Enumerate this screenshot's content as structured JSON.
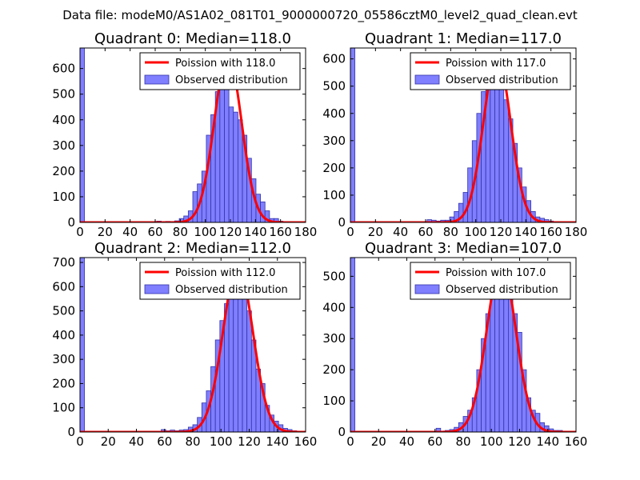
{
  "figure_title": "Data file: modeM0/AS1A02_081T01_9000000720_05586cztM0_level2_quad_clean.evt",
  "colors": {
    "bar_fill": "#7f7fff",
    "bar_edge": "#3333aa",
    "curve": "#ff0000"
  },
  "chart_data": [
    {
      "type": "bar",
      "title": "Quadrant 0: Median=118.0",
      "legend": [
        "Poission with 118.0",
        "Observed distribution"
      ],
      "xlim": [
        0,
        180
      ],
      "ylim": [
        0,
        680
      ],
      "xticks": [
        0,
        20,
        40,
        60,
        80,
        100,
        120,
        140,
        160,
        180
      ],
      "yticks": [
        0,
        100,
        200,
        300,
        400,
        500,
        600
      ],
      "bin_width": 3.6,
      "bins": [
        {
          "x": 0,
          "count": 680
        },
        {
          "x": 61.2,
          "count": 5
        },
        {
          "x": 64.8,
          "count": 3
        },
        {
          "x": 68.4,
          "count": 4
        },
        {
          "x": 72,
          "count": 3
        },
        {
          "x": 75.6,
          "count": 6
        },
        {
          "x": 79.2,
          "count": 15
        },
        {
          "x": 82.8,
          "count": 25
        },
        {
          "x": 86.4,
          "count": 45
        },
        {
          "x": 90,
          "count": 120
        },
        {
          "x": 93.6,
          "count": 150
        },
        {
          "x": 97.2,
          "count": 200
        },
        {
          "x": 100.8,
          "count": 340
        },
        {
          "x": 104.4,
          "count": 420
        },
        {
          "x": 108,
          "count": 510
        },
        {
          "x": 111.6,
          "count": 585
        },
        {
          "x": 115.2,
          "count": 650
        },
        {
          "x": 118.8,
          "count": 450
        },
        {
          "x": 122.4,
          "count": 430
        },
        {
          "x": 126,
          "count": 400
        },
        {
          "x": 129.6,
          "count": 340
        },
        {
          "x": 133.2,
          "count": 250
        },
        {
          "x": 136.8,
          "count": 170
        },
        {
          "x": 140.4,
          "count": 110
        },
        {
          "x": 144,
          "count": 80
        },
        {
          "x": 147.6,
          "count": 45
        },
        {
          "x": 151.2,
          "count": 15
        },
        {
          "x": 154.8,
          "count": 15
        },
        {
          "x": 158.4,
          "count": 5
        }
      ],
      "poisson_mean": 118.0,
      "curve_peak": 650
    },
    {
      "type": "bar",
      "title": "Quadrant 1: Median=117.0",
      "legend": [
        "Poission with 117.0",
        "Observed distribution"
      ],
      "xlim": [
        0,
        180
      ],
      "ylim": [
        0,
        640
      ],
      "xticks": [
        0,
        20,
        40,
        60,
        80,
        100,
        120,
        140,
        160,
        180
      ],
      "yticks": [
        0,
        100,
        200,
        300,
        400,
        500,
        600
      ],
      "bin_width": 3.6,
      "bins": [
        {
          "x": 0,
          "count": 640
        },
        {
          "x": 61.2,
          "count": 10
        },
        {
          "x": 64.8,
          "count": 8
        },
        {
          "x": 68.4,
          "count": 5
        },
        {
          "x": 72,
          "count": 8
        },
        {
          "x": 75.6,
          "count": 8
        },
        {
          "x": 79.2,
          "count": 20
        },
        {
          "x": 82.8,
          "count": 40
        },
        {
          "x": 86.4,
          "count": 70
        },
        {
          "x": 90,
          "count": 110
        },
        {
          "x": 93.6,
          "count": 200
        },
        {
          "x": 97.2,
          "count": 300
        },
        {
          "x": 100.8,
          "count": 400
        },
        {
          "x": 104.4,
          "count": 480
        },
        {
          "x": 108,
          "count": 550
        },
        {
          "x": 111.6,
          "count": 600
        },
        {
          "x": 115.2,
          "count": 570
        },
        {
          "x": 118.8,
          "count": 500
        },
        {
          "x": 122.4,
          "count": 450
        },
        {
          "x": 126,
          "count": 380
        },
        {
          "x": 129.6,
          "count": 290
        },
        {
          "x": 133.2,
          "count": 200
        },
        {
          "x": 136.8,
          "count": 130
        },
        {
          "x": 140.4,
          "count": 80
        },
        {
          "x": 144,
          "count": 40
        },
        {
          "x": 147.6,
          "count": 20
        },
        {
          "x": 151.2,
          "count": 15
        },
        {
          "x": 154.8,
          "count": 10
        },
        {
          "x": 158.4,
          "count": 5
        }
      ],
      "poisson_mean": 117.0,
      "curve_peak": 610
    },
    {
      "type": "bar",
      "title": "Quadrant 2: Median=112.0",
      "legend": [
        "Poission with 112.0",
        "Observed distribution"
      ],
      "xlim": [
        0,
        160
      ],
      "ylim": [
        0,
        720
      ],
      "xticks": [
        0,
        20,
        40,
        60,
        80,
        100,
        120,
        140,
        160
      ],
      "yticks": [
        0,
        100,
        200,
        300,
        400,
        500,
        600,
        700
      ],
      "bin_width": 3.2,
      "bins": [
        {
          "x": 0,
          "count": 720
        },
        {
          "x": 57.6,
          "count": 10
        },
        {
          "x": 60.8,
          "count": 5
        },
        {
          "x": 64,
          "count": 8
        },
        {
          "x": 67.2,
          "count": 5
        },
        {
          "x": 70.4,
          "count": 8
        },
        {
          "x": 73.6,
          "count": 10
        },
        {
          "x": 76.8,
          "count": 20
        },
        {
          "x": 80,
          "count": 30
        },
        {
          "x": 83.2,
          "count": 60
        },
        {
          "x": 86.4,
          "count": 120
        },
        {
          "x": 89.6,
          "count": 170
        },
        {
          "x": 92.8,
          "count": 270
        },
        {
          "x": 96,
          "count": 380
        },
        {
          "x": 99.2,
          "count": 460
        },
        {
          "x": 102.4,
          "count": 530
        },
        {
          "x": 105.6,
          "count": 580
        },
        {
          "x": 108.8,
          "count": 640
        },
        {
          "x": 112,
          "count": 590
        },
        {
          "x": 115.2,
          "count": 560
        },
        {
          "x": 118.4,
          "count": 500
        },
        {
          "x": 121.6,
          "count": 380
        },
        {
          "x": 124.8,
          "count": 260
        },
        {
          "x": 128,
          "count": 200
        },
        {
          "x": 131.2,
          "count": 110
        },
        {
          "x": 134.4,
          "count": 70
        },
        {
          "x": 137.6,
          "count": 45
        },
        {
          "x": 140.8,
          "count": 30
        },
        {
          "x": 144,
          "count": 15
        },
        {
          "x": 147.2,
          "count": 10
        },
        {
          "x": 150.4,
          "count": 5
        }
      ],
      "poisson_mean": 112.0,
      "curve_peak": 685
    },
    {
      "type": "bar",
      "title": "Quadrant 3: Median=107.0",
      "legend": [
        "Poission with 107.0",
        "Observed distribution"
      ],
      "xlim": [
        0,
        160
      ],
      "ylim": [
        0,
        560
      ],
      "xticks": [
        0,
        20,
        40,
        60,
        80,
        100,
        120,
        140,
        160
      ],
      "yticks": [
        0,
        100,
        200,
        300,
        400,
        500
      ],
      "bin_width": 3.2,
      "bins": [
        {
          "x": 0,
          "count": 560
        },
        {
          "x": 60.8,
          "count": 12
        },
        {
          "x": 64,
          "count": 3
        },
        {
          "x": 67.2,
          "count": 5
        },
        {
          "x": 70.4,
          "count": 8
        },
        {
          "x": 73.6,
          "count": 15
        },
        {
          "x": 76.8,
          "count": 30
        },
        {
          "x": 80,
          "count": 50
        },
        {
          "x": 83.2,
          "count": 70
        },
        {
          "x": 86.4,
          "count": 110
        },
        {
          "x": 89.6,
          "count": 200
        },
        {
          "x": 92.8,
          "count": 300
        },
        {
          "x": 96,
          "count": 380
        },
        {
          "x": 99.2,
          "count": 450
        },
        {
          "x": 102.4,
          "count": 490
        },
        {
          "x": 105.6,
          "count": 520
        },
        {
          "x": 108.8,
          "count": 500
        },
        {
          "x": 112,
          "count": 480
        },
        {
          "x": 115.2,
          "count": 380
        },
        {
          "x": 118.4,
          "count": 320
        },
        {
          "x": 121.6,
          "count": 200
        },
        {
          "x": 124.8,
          "count": 110
        },
        {
          "x": 128,
          "count": 70
        },
        {
          "x": 131.2,
          "count": 60
        },
        {
          "x": 134.4,
          "count": 30
        },
        {
          "x": 137.6,
          "count": 20
        },
        {
          "x": 140.8,
          "count": 10
        },
        {
          "x": 144,
          "count": 5
        },
        {
          "x": 147.2,
          "count": 5
        }
      ],
      "poisson_mean": 107.0,
      "curve_peak": 540
    }
  ]
}
